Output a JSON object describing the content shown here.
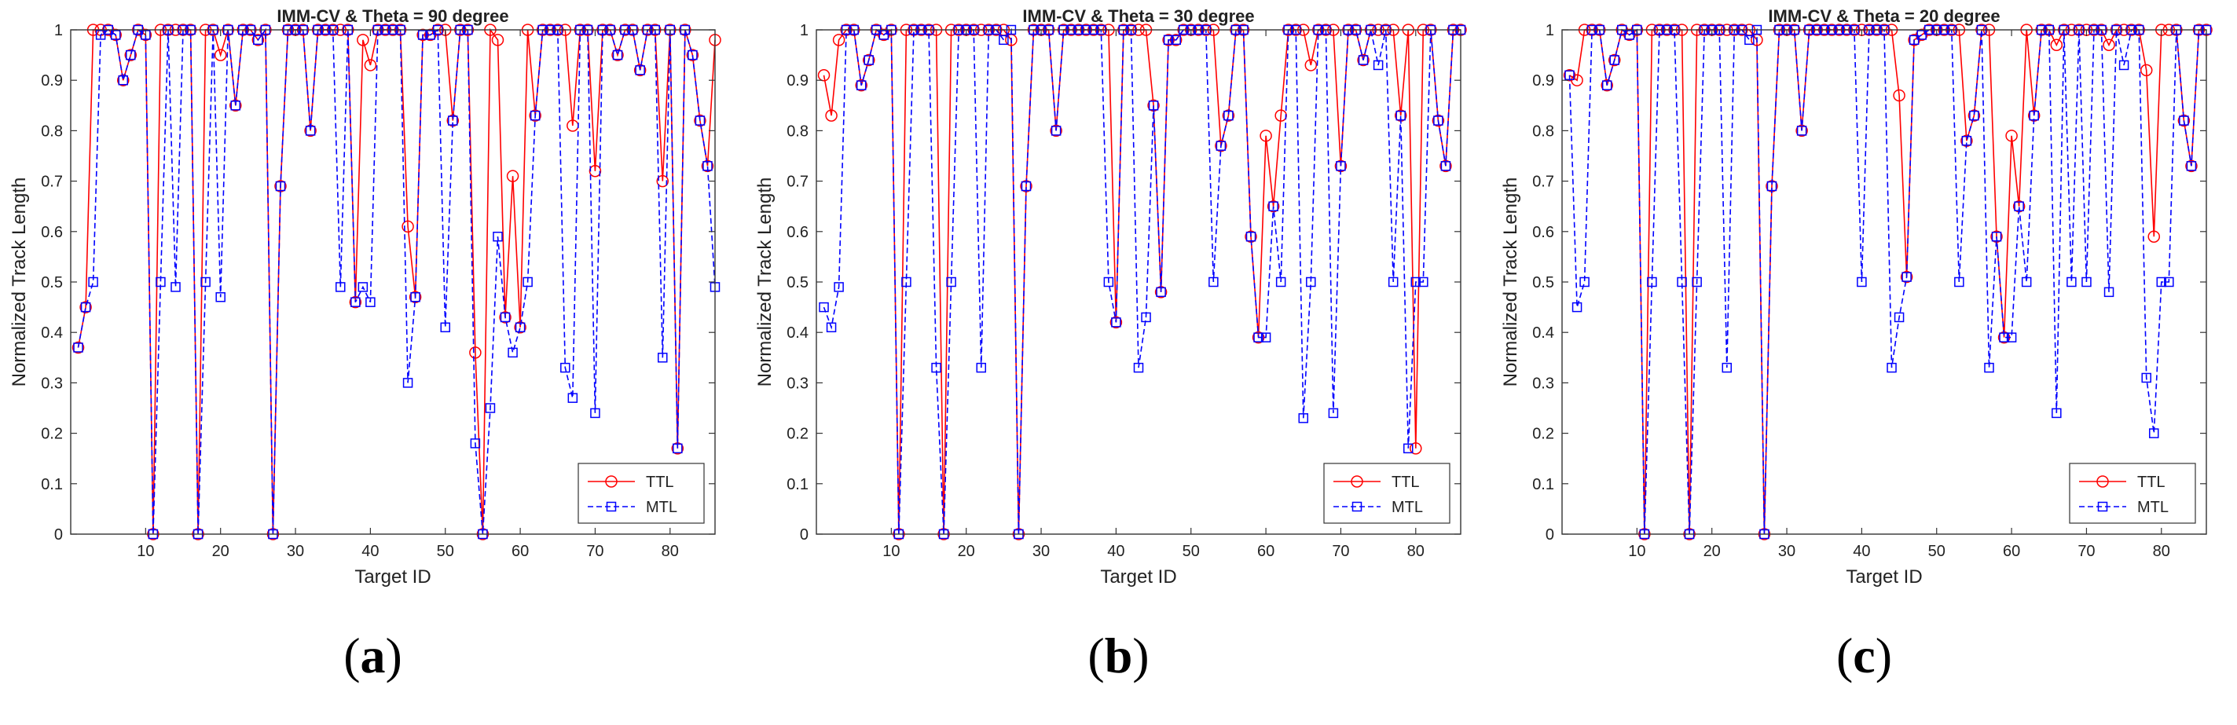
{
  "chart_data": [
    {
      "type": "line",
      "title": "IMM-CV & Theta = 90 degree",
      "xlabel": "Target ID",
      "ylabel": "Normalized Track Length",
      "xlim": [
        0,
        86
      ],
      "ylim": [
        0,
        1
      ],
      "xticks": [
        10,
        20,
        30,
        40,
        50,
        60,
        70,
        80
      ],
      "yticks": [
        0,
        0.1,
        0.2,
        0.3,
        0.4,
        0.5,
        0.6,
        0.7,
        0.8,
        0.9,
        1
      ],
      "legend": [
        "TTL",
        "MTL"
      ],
      "legend_position": "lower-right",
      "caption": "a",
      "x": [
        1,
        2,
        3,
        4,
        5,
        6,
        7,
        8,
        9,
        10,
        11,
        12,
        13,
        14,
        15,
        16,
        17,
        18,
        19,
        20,
        21,
        22,
        23,
        24,
        25,
        26,
        27,
        28,
        29,
        30,
        31,
        32,
        33,
        34,
        35,
        36,
        37,
        38,
        39,
        40,
        41,
        42,
        43,
        44,
        45,
        46,
        47,
        48,
        49,
        50,
        51,
        52,
        53,
        54,
        55,
        56,
        57,
        58,
        59,
        60,
        61,
        62,
        63,
        64,
        65,
        66,
        67,
        68,
        69,
        70,
        71,
        72,
        73,
        74,
        75,
        76,
        77,
        78,
        79,
        80,
        81,
        82,
        83,
        84,
        85,
        86
      ],
      "series": [
        {
          "name": "TTL",
          "color": "#ff0000",
          "dash": "solid",
          "marker": "circle",
          "values": [
            0.37,
            0.45,
            1,
            1,
            1,
            0.99,
            0.9,
            0.95,
            1,
            0.99,
            0,
            1,
            1,
            1,
            1,
            1,
            0,
            1,
            1,
            0.95,
            1,
            0.85,
            1,
            1,
            0.98,
            1,
            0,
            0.69,
            1,
            1,
            1,
            0.8,
            1,
            1,
            1,
            1,
            1,
            0.46,
            0.98,
            0.93,
            1,
            1,
            1,
            1,
            0.61,
            0.47,
            0.99,
            0.99,
            1,
            1,
            0.82,
            1,
            1,
            0.36,
            0,
            1,
            0.98,
            0.43,
            0.71,
            0.41,
            1,
            0.83,
            1,
            1,
            1,
            1,
            0.81,
            1,
            1,
            0.72,
            1,
            1,
            0.95,
            1,
            1,
            0.92,
            1,
            1,
            0.7,
            1,
            0.17,
            1,
            0.95,
            0.82,
            0.73,
            0.98
          ]
        },
        {
          "name": "MTL",
          "color": "#0000ff",
          "dash": "dashed",
          "marker": "square",
          "values": [
            0.37,
            0.45,
            0.5,
            0.99,
            1,
            0.99,
            0.9,
            0.95,
            1,
            0.99,
            0,
            0.5,
            1,
            0.49,
            1,
            1,
            0,
            0.5,
            1,
            0.47,
            1,
            0.85,
            1,
            1,
            0.98,
            1,
            0,
            0.69,
            1,
            1,
            1,
            0.8,
            1,
            1,
            1,
            0.49,
            1,
            0.46,
            0.49,
            0.46,
            1,
            1,
            1,
            1,
            0.3,
            0.47,
            0.99,
            0.99,
            1,
            0.41,
            0.82,
            1,
            1,
            0.18,
            0,
            0.25,
            0.59,
            0.43,
            0.36,
            0.41,
            0.5,
            0.83,
            1,
            1,
            1,
            0.33,
            0.27,
            1,
            1,
            0.24,
            1,
            1,
            0.95,
            1,
            1,
            0.92,
            1,
            1,
            0.35,
            1,
            0.17,
            1,
            0.95,
            0.82,
            0.73,
            0.49
          ]
        }
      ]
    },
    {
      "type": "line",
      "title": "IMM-CV & Theta = 30 degree",
      "xlabel": "Target ID",
      "ylabel": "Normalized Track Length",
      "xlim": [
        0,
        86
      ],
      "ylim": [
        0,
        1
      ],
      "xticks": [
        10,
        20,
        30,
        40,
        50,
        60,
        70,
        80
      ],
      "yticks": [
        0,
        0.1,
        0.2,
        0.3,
        0.4,
        0.5,
        0.6,
        0.7,
        0.8,
        0.9,
        1
      ],
      "legend": [
        "TTL",
        "MTL"
      ],
      "legend_position": "lower-right",
      "caption": "b",
      "x": [
        1,
        2,
        3,
        4,
        5,
        6,
        7,
        8,
        9,
        10,
        11,
        12,
        13,
        14,
        15,
        16,
        17,
        18,
        19,
        20,
        21,
        22,
        23,
        24,
        25,
        26,
        27,
        28,
        29,
        30,
        31,
        32,
        33,
        34,
        35,
        36,
        37,
        38,
        39,
        40,
        41,
        42,
        43,
        44,
        45,
        46,
        47,
        48,
        49,
        50,
        51,
        52,
        53,
        54,
        55,
        56,
        57,
        58,
        59,
        60,
        61,
        62,
        63,
        64,
        65,
        66,
        67,
        68,
        69,
        70,
        71,
        72,
        73,
        74,
        75,
        76,
        77,
        78,
        79,
        80,
        81,
        82,
        83,
        84,
        85,
        86
      ],
      "series": [
        {
          "name": "TTL",
          "color": "#ff0000",
          "dash": "solid",
          "marker": "circle",
          "values": [
            0.91,
            0.83,
            0.98,
            1,
            1,
            0.89,
            0.94,
            1,
            0.99,
            1,
            0,
            1,
            1,
            1,
            1,
            1,
            0,
            1,
            1,
            1,
            1,
            1,
            1,
            1,
            1,
            0.98,
            0,
            0.69,
            1,
            1,
            1,
            0.8,
            1,
            1,
            1,
            1,
            1,
            1,
            1,
            0.42,
            1,
            1,
            1,
            1,
            0.85,
            0.48,
            0.98,
            0.98,
            1,
            1,
            1,
            1,
            1,
            0.77,
            0.83,
            1,
            1,
            0.59,
            0.39,
            0.79,
            0.65,
            0.83,
            1,
            1,
            1,
            0.93,
            1,
            1,
            1,
            0.73,
            1,
            1,
            0.94,
            1,
            1,
            1,
            1,
            0.83,
            1,
            0.17,
            1,
            1,
            0.82,
            0.73,
            1,
            1
          ]
        },
        {
          "name": "MTL",
          "color": "#0000ff",
          "dash": "dashed",
          "marker": "square",
          "values": [
            0.45,
            0.41,
            0.49,
            1,
            1,
            0.89,
            0.94,
            1,
            0.99,
            1,
            0,
            0.5,
            1,
            1,
            1,
            0.33,
            0,
            0.5,
            1,
            1,
            1,
            0.33,
            1,
            1,
            0.98,
            1,
            0,
            0.69,
            1,
            1,
            1,
            0.8,
            1,
            1,
            1,
            1,
            1,
            1,
            0.5,
            0.42,
            1,
            1,
            0.33,
            0.43,
            0.85,
            0.48,
            0.98,
            0.98,
            1,
            1,
            1,
            1,
            0.5,
            0.77,
            0.83,
            1,
            1,
            0.59,
            0.39,
            0.39,
            0.65,
            0.5,
            1,
            1,
            0.23,
            0.5,
            1,
            1,
            0.24,
            0.73,
            1,
            1,
            0.94,
            1,
            0.93,
            1,
            0.5,
            0.83,
            0.17,
            0.5,
            0.5,
            1,
            0.82,
            0.73,
            1,
            1
          ]
        }
      ]
    },
    {
      "type": "line",
      "title": "IMM-CV & Theta = 20 degree",
      "xlabel": "Target ID",
      "ylabel": "Normalized Track Length",
      "xlim": [
        0,
        86
      ],
      "ylim": [
        0,
        1
      ],
      "xticks": [
        10,
        20,
        30,
        40,
        50,
        60,
        70,
        80
      ],
      "yticks": [
        0,
        0.1,
        0.2,
        0.3,
        0.4,
        0.5,
        0.6,
        0.7,
        0.8,
        0.9,
        1
      ],
      "legend": [
        "TTL",
        "MTL"
      ],
      "legend_position": "lower-right",
      "caption": "c",
      "x": [
        1,
        2,
        3,
        4,
        5,
        6,
        7,
        8,
        9,
        10,
        11,
        12,
        13,
        14,
        15,
        16,
        17,
        18,
        19,
        20,
        21,
        22,
        23,
        24,
        25,
        26,
        27,
        28,
        29,
        30,
        31,
        32,
        33,
        34,
        35,
        36,
        37,
        38,
        39,
        40,
        41,
        42,
        43,
        44,
        45,
        46,
        47,
        48,
        49,
        50,
        51,
        52,
        53,
        54,
        55,
        56,
        57,
        58,
        59,
        60,
        61,
        62,
        63,
        64,
        65,
        66,
        67,
        68,
        69,
        70,
        71,
        72,
        73,
        74,
        75,
        76,
        77,
        78,
        79,
        80,
        81,
        82,
        83,
        84,
        85,
        86
      ],
      "series": [
        {
          "name": "TTL",
          "color": "#ff0000",
          "dash": "solid",
          "marker": "circle",
          "values": [
            0.91,
            0.9,
            1,
            1,
            1,
            0.89,
            0.94,
            1,
            0.99,
            1,
            0,
            1,
            1,
            1,
            1,
            1,
            0,
            1,
            1,
            1,
            1,
            1,
            1,
            1,
            1,
            0.98,
            0,
            0.69,
            1,
            1,
            1,
            0.8,
            1,
            1,
            1,
            1,
            1,
            1,
            1,
            1,
            1,
            1,
            1,
            1,
            0.87,
            0.51,
            0.98,
            0.99,
            1,
            1,
            1,
            1,
            1,
            0.78,
            0.83,
            1,
            1,
            0.59,
            0.39,
            0.79,
            0.65,
            1,
            0.83,
            1,
            1,
            0.97,
            1,
            1,
            1,
            1,
            1,
            1,
            0.97,
            1,
            1,
            1,
            1,
            0.92,
            0.59,
            1,
            1,
            1,
            0.82,
            0.73,
            1,
            1
          ]
        },
        {
          "name": "MTL",
          "color": "#0000ff",
          "dash": "dashed",
          "marker": "square",
          "values": [
            0.91,
            0.45,
            0.5,
            1,
            1,
            0.89,
            0.94,
            1,
            0.99,
            1,
            0,
            0.5,
            1,
            1,
            1,
            0.5,
            0,
            0.5,
            1,
            1,
            1,
            0.33,
            1,
            1,
            0.98,
            1,
            0,
            0.69,
            1,
            1,
            1,
            0.8,
            1,
            1,
            1,
            1,
            1,
            1,
            1,
            0.5,
            1,
            1,
            1,
            0.33,
            0.43,
            0.51,
            0.98,
            0.99,
            1,
            1,
            1,
            1,
            0.5,
            0.78,
            0.83,
            1,
            0.33,
            0.59,
            0.39,
            0.39,
            0.65,
            0.5,
            0.83,
            1,
            1,
            0.24,
            1,
            0.5,
            1,
            0.5,
            1,
            1,
            0.48,
            1,
            0.93,
            1,
            1,
            0.31,
            0.2,
            0.5,
            0.5,
            1,
            0.82,
            0.73,
            1,
            1
          ]
        }
      ]
    }
  ]
}
